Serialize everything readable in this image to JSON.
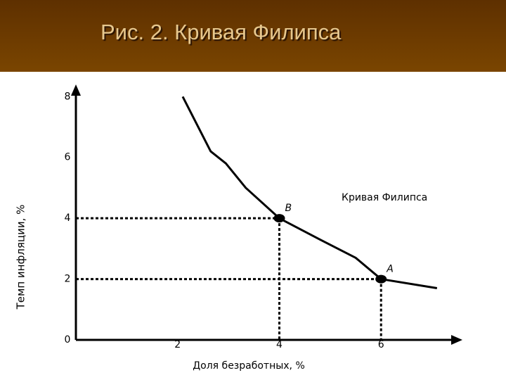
{
  "chart_data": {
    "type": "line",
    "title": "Рис. 2. Кривая Филипса",
    "xlabel": "Доля безработных, %",
    "ylabel": "Темп инфляции, %",
    "series": [
      {
        "name": "Кривая Филипса",
        "color": "#000000",
        "x": [
          2.1,
          2.65,
          2.95,
          3.34,
          4,
          4.8,
          5.5,
          6,
          7.1
        ],
        "values": [
          8,
          6.2,
          5.8,
          5.0,
          4,
          3.3,
          2.7,
          2,
          1.7
        ]
      }
    ],
    "points": [
      {
        "label": "B",
        "x": 4,
        "y": 4
      },
      {
        "label": "A",
        "x": 6,
        "y": 2
      }
    ],
    "xlim": [
      0,
      7.6
    ],
    "ylim": [
      0,
      8.4
    ],
    "xticks": [
      2,
      4,
      6
    ],
    "yticks": [
      0,
      2,
      4,
      6,
      8
    ]
  }
}
